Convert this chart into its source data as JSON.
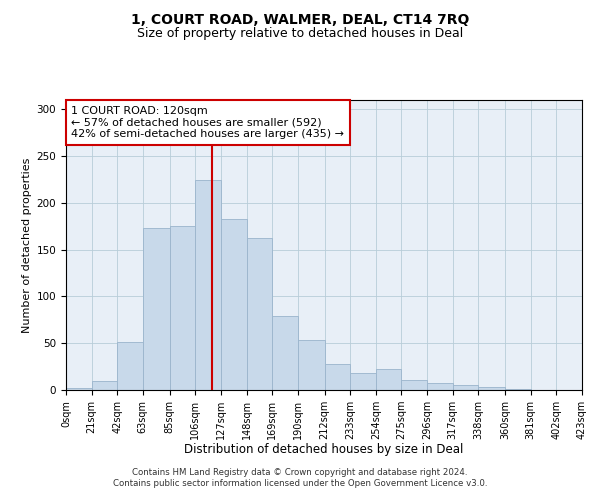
{
  "title1": "1, COURT ROAD, WALMER, DEAL, CT14 7RQ",
  "title2": "Size of property relative to detached houses in Deal",
  "xlabel": "Distribution of detached houses by size in Deal",
  "ylabel": "Number of detached properties",
  "footnote1": "Contains HM Land Registry data © Crown copyright and database right 2024.",
  "footnote2": "Contains public sector information licensed under the Open Government Licence v3.0.",
  "annotation_line1": "1 COURT ROAD: 120sqm",
  "annotation_line2": "← 57% of detached houses are smaller (592)",
  "annotation_line3": "42% of semi-detached houses are larger (435) →",
  "property_size": 120,
  "bin_edges": [
    0,
    21,
    42,
    63,
    85,
    106,
    127,
    148,
    169,
    190,
    212,
    233,
    254,
    275,
    296,
    317,
    338,
    360,
    381,
    402,
    423
  ],
  "bar_heights": [
    2,
    10,
    51,
    173,
    175,
    224,
    183,
    162,
    79,
    53,
    28,
    18,
    22,
    11,
    8,
    5,
    3,
    1,
    0,
    0
  ],
  "ylim": [
    0,
    310
  ],
  "yticks": [
    0,
    50,
    100,
    150,
    200,
    250,
    300
  ],
  "bar_color": "#c8d9ea",
  "bar_edge_color": "#9ab4cc",
  "vline_color": "#cc0000",
  "vline_x": 120,
  "annotation_box_color": "#cc0000",
  "grid_color": "#b8cdd8",
  "bg_color": "#e8eff7",
  "title1_fontsize": 10,
  "title2_fontsize": 9,
  "xlabel_fontsize": 8.5,
  "ylabel_fontsize": 8,
  "annotation_fontsize": 8,
  "tick_fontsize": 7
}
